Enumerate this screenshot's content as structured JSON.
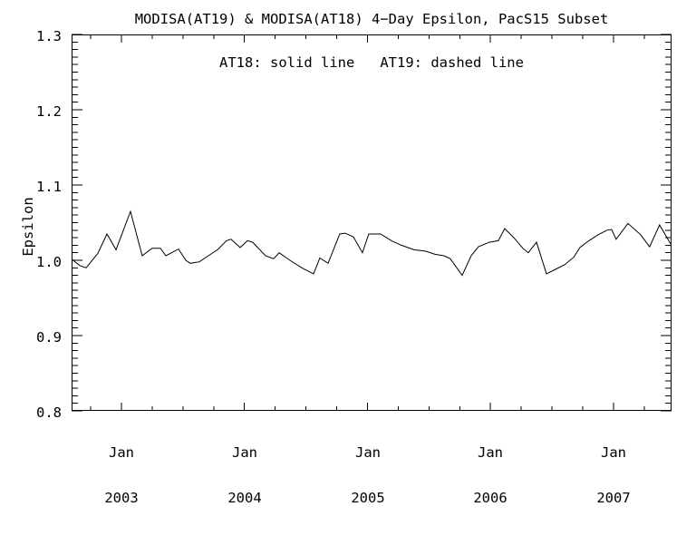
{
  "chart_data": {
    "type": "line",
    "title": "MODISA(AT19) & MODISA(AT18) 4−Day Epsilon, PacS15 Subset",
    "annotation": "AT18: solid line   AT19: dashed line",
    "xlabel": "",
    "ylabel": "Epsilon",
    "xlim": [
      2002.595,
      2007.472
    ],
    "ylim": [
      0.8,
      1.3
    ],
    "grid": false,
    "legend_position": "top-center-annotation",
    "axis_color": "#000000",
    "line_color": "#000000",
    "background_color": "#ffffff",
    "ytick_values": [
      0.8,
      0.9,
      1.0,
      1.1,
      1.2,
      1.3
    ],
    "ytick_labels": [
      "0.8",
      "0.9",
      "1.0",
      "1.1",
      "1.2",
      "1.3"
    ],
    "ytick_minor_step": 0.01,
    "xtick_minor_step": 0.25,
    "xticks": [
      {
        "t": 2003,
        "month": "Jan",
        "year": "2003"
      },
      {
        "t": 2004,
        "month": "Jan",
        "year": "2004"
      },
      {
        "t": 2005,
        "month": "Jan",
        "year": "2005"
      },
      {
        "t": 2006,
        "month": "Jan",
        "year": "2006"
      },
      {
        "t": 2007,
        "month": "Jan",
        "year": "2007"
      }
    ],
    "series": [
      {
        "name": "AT18",
        "style": "solid",
        "color": "#000000",
        "x": [
          2002.6,
          2002.661,
          2002.713,
          2002.808,
          2002.882,
          2002.956,
          2003.074,
          2003.169,
          2003.25,
          2003.317,
          2003.361,
          2003.464,
          2003.523,
          2003.56,
          2003.634,
          2003.707,
          2003.781,
          2003.854,
          2003.891,
          2003.965,
          2004.024,
          2004.068,
          2004.171,
          2004.238,
          2004.282,
          2004.37,
          2004.466,
          2004.562,
          2004.613,
          2004.68,
          2004.775,
          2004.82,
          2004.886,
          2004.959,
          2005.011,
          2005.107,
          2005.195,
          2005.276,
          2005.379,
          2005.475,
          2005.549,
          2005.622,
          2005.674,
          2005.77,
          2005.843,
          2005.902,
          2005.991,
          2006.064,
          2006.116,
          2006.19,
          2006.263,
          2006.307,
          2006.374,
          2006.455,
          2006.528,
          2006.602,
          2006.676,
          2006.727,
          2006.801,
          2006.875,
          2006.948,
          2006.985,
          2007.022,
          2007.118,
          2007.221,
          2007.294,
          2007.375,
          2007.464
        ],
        "y": [
          1.001,
          0.993,
          0.99,
          1.009,
          1.035,
          1.014,
          1.065,
          1.006,
          1.016,
          1.016,
          1.006,
          1.015,
          1.0,
          0.996,
          0.998,
          1.006,
          1.014,
          1.026,
          1.028,
          1.017,
          1.026,
          1.024,
          1.006,
          1.002,
          1.01,
          1.0,
          0.99,
          0.982,
          1.003,
          0.996,
          1.035,
          1.036,
          1.031,
          1.01,
          1.035,
          1.035,
          1.026,
          1.02,
          1.014,
          1.012,
          1.008,
          1.006,
          1.002,
          0.98,
          1.006,
          1.018,
          1.024,
          1.026,
          1.042,
          1.03,
          1.016,
          1.01,
          1.024,
          0.982,
          0.988,
          0.994,
          1.004,
          1.017,
          1.026,
          1.034,
          1.04,
          1.041,
          1.028,
          1.049,
          1.034,
          1.018,
          1.047,
          1.022
        ]
      }
    ]
  }
}
